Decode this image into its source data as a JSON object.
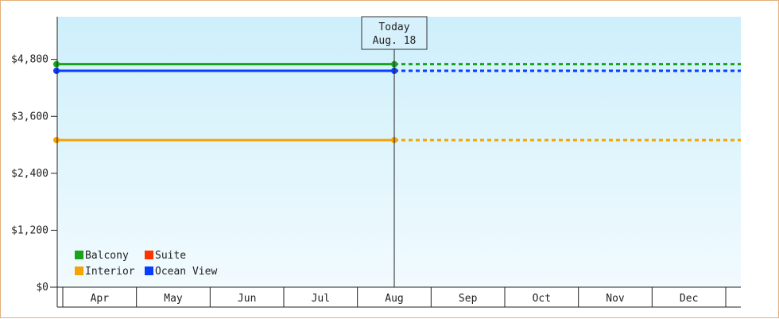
{
  "chart_data": {
    "type": "line",
    "title": "",
    "xlabel": "",
    "ylabel": "",
    "x": [
      "Apr",
      "May",
      "Jun",
      "Jul",
      "Aug",
      "Sep",
      "Oct",
      "Nov",
      "Dec"
    ],
    "yticks": [
      "$0",
      "$1,200",
      "$2,400",
      "$3,600",
      "$4,800"
    ],
    "ytick_values": [
      0,
      1200,
      2400,
      3600,
      4800
    ],
    "ylim": [
      0,
      5700
    ],
    "today": {
      "line1": "Today",
      "line2": "Aug. 18",
      "x_index": 4
    },
    "series": [
      {
        "name": "Balcony",
        "color": "#1aa31a",
        "actual_values": [
          4700,
          4700,
          4700,
          4700,
          4700
        ],
        "projected_value": 4700
      },
      {
        "name": "Suite",
        "color": "#ff3300",
        "actual_values": [],
        "projected_value": null
      },
      {
        "name": "Interior",
        "color": "#f5a300",
        "actual_values": [
          3100,
          3100,
          3100,
          3100,
          3100
        ],
        "projected_value": 3100
      },
      {
        "name": "Ocean View",
        "color": "#0a3cff",
        "actual_values": [
          4560,
          4560,
          4560,
          4560,
          4560
        ],
        "projected_value": 4560
      }
    ],
    "grid": false,
    "legend_position": "bottom-left",
    "background_gradient": [
      "#cdeffb",
      "#f2fbfe"
    ]
  }
}
